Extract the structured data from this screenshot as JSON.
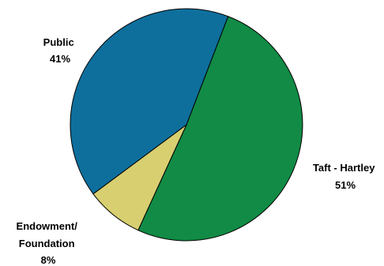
{
  "chart_data": {
    "type": "pie",
    "slices": [
      {
        "label": "Taft - Hartley",
        "percent_label": "51%",
        "value": 51,
        "color": "#118b45"
      },
      {
        "label": "Endowment/ Foundation",
        "label_lines": [
          "Endowment/",
          "Foundation"
        ],
        "percent_label": "8%",
        "value": 8,
        "color": "#d7cf70"
      },
      {
        "label": "Public",
        "percent_label": "41%",
        "value": 41,
        "color": "#0e6f9d"
      }
    ],
    "start_angle_deg": 21,
    "direction": "clockwise",
    "legend": "none",
    "data_labels": "outside"
  }
}
